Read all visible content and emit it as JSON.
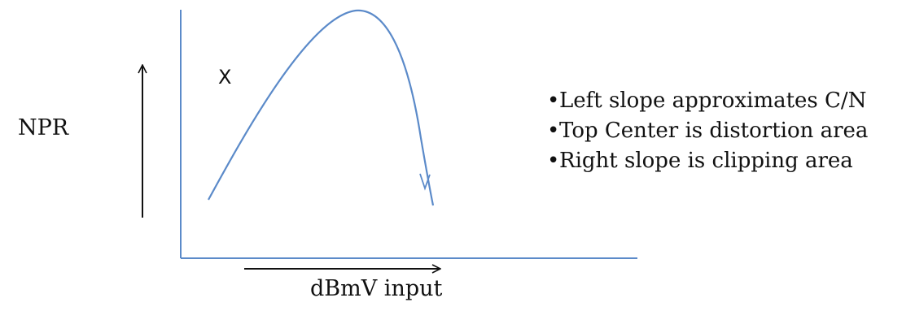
{
  "diagram": {
    "y_label": "NPR",
    "x_label": "dBmV input",
    "point_marker": "X",
    "colors": {
      "curve": "#5b8ac9",
      "axes": "#5b8ac9",
      "arrows": "#111111",
      "text": "#111111"
    },
    "notes": [
      "Left slope approximates C/N",
      "Top Center is  distortion area",
      "Right slope is clipping area"
    ]
  }
}
